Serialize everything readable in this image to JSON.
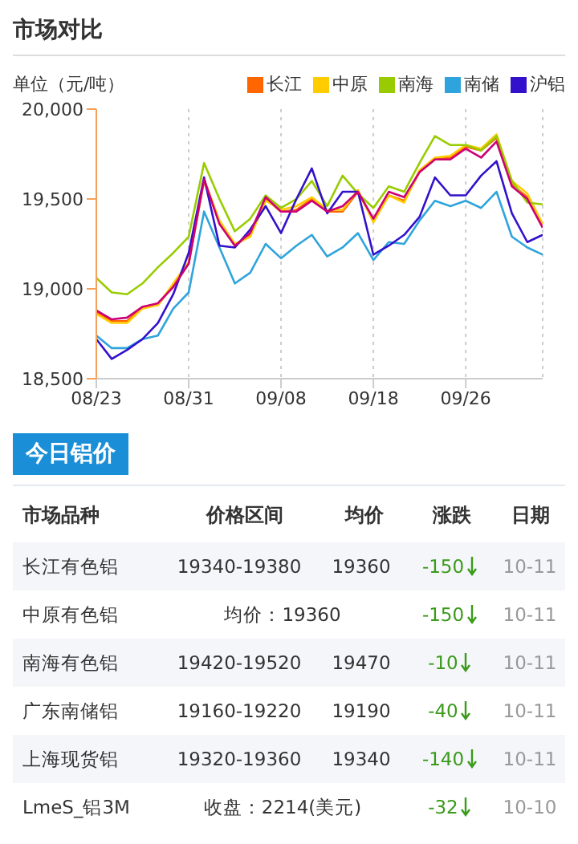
{
  "chart_data": [
    {
      "type": "line",
      "title": "市场对比",
      "ylabel": "单位（元/吨）",
      "categories": [
        "08/23",
        null,
        null,
        null,
        null,
        null,
        "08/31",
        null,
        null,
        null,
        null,
        null,
        "09/08",
        null,
        null,
        null,
        null,
        null,
        "09/18",
        null,
        null,
        null,
        null,
        null,
        "09/26",
        null,
        null,
        null,
        null,
        null
      ],
      "series": [
        {
          "name": "长江",
          "color": "#ff6600",
          "values": [
            18870,
            18820,
            18820,
            18900,
            18910,
            19020,
            19140,
            19600,
            19370,
            19240,
            19300,
            19500,
            19430,
            19440,
            19500,
            19430,
            19430,
            19540,
            19380,
            19520,
            19490,
            19650,
            19720,
            19730,
            19790,
            19770,
            19840,
            19580,
            19510,
            19360
          ]
        },
        {
          "name": "中原",
          "color": "#ffcc00",
          "values": [
            18860,
            18810,
            18810,
            18890,
            18910,
            19030,
            19150,
            19610,
            19380,
            19250,
            19290,
            19490,
            19440,
            19460,
            19510,
            19440,
            19440,
            19550,
            19370,
            19520,
            19480,
            19660,
            19730,
            19740,
            19800,
            19780,
            19860,
            19600,
            19530,
            19360
          ]
        },
        {
          "name": "南海",
          "color": "#99cc00",
          "values": [
            19060,
            18980,
            18970,
            19030,
            19120,
            19200,
            19290,
            19700,
            19500,
            19320,
            19390,
            19520,
            19450,
            19500,
            19600,
            19460,
            19630,
            19530,
            19450,
            19570,
            19540,
            19700,
            19850,
            19800,
            19800,
            19770,
            19850,
            19600,
            19480,
            19470
          ]
        },
        {
          "name": "南储",
          "color": "#2fa4dc",
          "values": [
            18740,
            18670,
            18670,
            18720,
            18740,
            18890,
            18980,
            19430,
            19230,
            19030,
            19090,
            19250,
            19170,
            19240,
            19300,
            19180,
            19230,
            19310,
            19160,
            19260,
            19250,
            19380,
            19490,
            19460,
            19490,
            19450,
            19540,
            19290,
            19230,
            19190
          ]
        },
        {
          "name": "沪铝",
          "color": "#3311cc",
          "values": [
            18720,
            18610,
            18660,
            18720,
            18810,
            18970,
            19200,
            19620,
            19240,
            19230,
            19330,
            19460,
            19310,
            19500,
            19670,
            19420,
            19540,
            19540,
            19190,
            19240,
            19300,
            19400,
            19620,
            19520,
            19520,
            19630,
            19710,
            19420,
            19260,
            19300
          ]
        },
        {
          "color": "#cc0077",
          "values": [
            18880,
            18830,
            18840,
            18900,
            18920,
            19010,
            19140,
            19610,
            19360,
            19240,
            19310,
            19510,
            19430,
            19430,
            19490,
            19430,
            19460,
            19540,
            19390,
            19540,
            19510,
            19650,
            19720,
            19720,
            19780,
            19730,
            19820,
            19570,
            19500,
            19340
          ]
        }
      ],
      "ylim": [
        18500,
        20000
      ],
      "yticks": [
        {
          "value": 18500,
          "label": "18,500"
        },
        {
          "value": 19000,
          "label": "19,000"
        },
        {
          "value": 19500,
          "label": "19,500"
        },
        {
          "value": 20000,
          "label": "20,000"
        }
      ],
      "grid": "x",
      "legend": "top",
      "marker": "none",
      "line_style": "solid"
    },
    {
      "type": "other",
      "title": "今日铝价",
      "categories": [
        "市场品种",
        "价格区间",
        "均价",
        "涨跌",
        "日期"
      ],
      "cell_labels": [
        [
          "长江有色铝",
          "19340-19380",
          "19360",
          "-150",
          "10-11"
        ],
        [
          "中原有色铝",
          "均价：19360",
          null,
          "-150",
          "10-11"
        ],
        [
          "南海有色铝",
          "19420-19520",
          "19470",
          "-10",
          "10-11"
        ],
        [
          "广东南储铝",
          "19160-19220",
          "19190",
          "-40",
          "10-11"
        ],
        [
          "上海现货铝",
          "19320-19360",
          "19340",
          "-140",
          "10-11"
        ],
        [
          "LmeS_铝3M",
          "收盘：2214(美元)",
          null,
          "-32",
          "10-10"
        ]
      ]
    }
  ]
}
